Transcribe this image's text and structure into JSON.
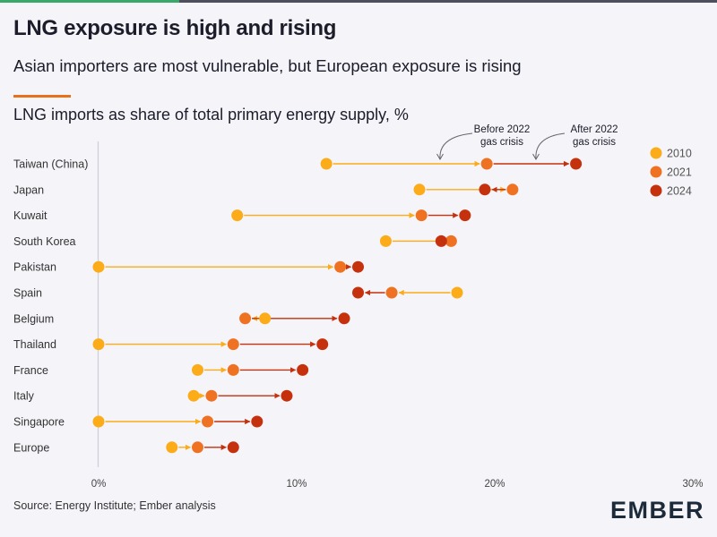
{
  "header": {
    "title": "LNG exposure is high and rising",
    "subtitle": "Asian importers are most vulnerable, but European exposure is rising"
  },
  "footer": {
    "source": "Source: Energy Institute; Ember analysis",
    "logo": "EMBER"
  },
  "colors": {
    "y2010": "#fbac18",
    "y2021": "#ee7222",
    "y2024": "#c5310d",
    "accent": "#e8711c",
    "brand_green": "#3aa86a"
  },
  "chart_data": {
    "type": "dot-arrow",
    "title": "LNG imports as share of total primary energy supply, %",
    "xlim": [
      0,
      30
    ],
    "xticks": [
      "0%",
      "10%",
      "20%",
      "30%"
    ],
    "grid": false,
    "legend_position": "top-right",
    "series_names": [
      "2010",
      "2021",
      "2024"
    ],
    "annotations": [
      "Before 2022 gas crisis",
      "After 2022 gas crisis"
    ],
    "categories": [
      "Taiwan (China)",
      "Japan",
      "Kuwait",
      "South Korea",
      "Pakistan",
      "Spain",
      "Belgium",
      "Thailand",
      "France",
      "Italy",
      "Singapore",
      "Europe"
    ],
    "series": [
      {
        "name": "2010",
        "values": [
          11.5,
          16.2,
          7.0,
          14.5,
          0.0,
          18.1,
          8.4,
          0.0,
          5.0,
          4.8,
          0.0,
          3.7
        ]
      },
      {
        "name": "2021",
        "values": [
          19.6,
          20.9,
          16.3,
          17.8,
          12.2,
          14.8,
          7.4,
          6.8,
          6.8,
          5.7,
          5.5,
          5.0
        ]
      },
      {
        "name": "2024",
        "values": [
          24.1,
          19.5,
          18.5,
          17.3,
          13.1,
          13.1,
          12.4,
          11.3,
          10.3,
          9.5,
          8.0,
          6.8
        ]
      }
    ]
  }
}
